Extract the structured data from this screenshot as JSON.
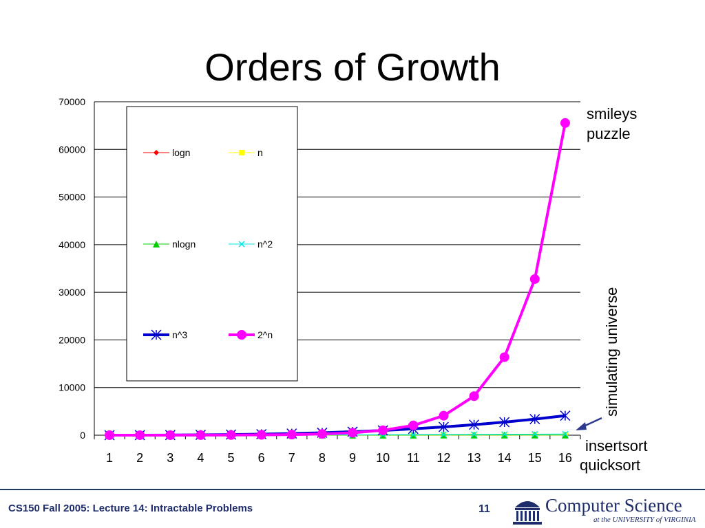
{
  "slide": {
    "title": "Orders of Growth",
    "footer": "CS150 Fall 2005: Lecture 14: Intractable Problems",
    "page_number": "11",
    "logo_text": "Computer Science",
    "logo_subtext": "at the UNIVERSITY of VIRGINIA"
  },
  "annotations": {
    "smileys": "smileys",
    "puzzle": "puzzle",
    "simulating": "simulating universe",
    "insertsort": "insertsort",
    "quicksort": "quicksort"
  },
  "colors": {
    "logn": "#ff0000",
    "n": "#ffff00",
    "nlogn": "#00cc00",
    "n2": "#00e5e5",
    "n3": "#0000cc",
    "two_n": "#ff00ff",
    "arrow": "#2b3a8f",
    "footer": "#1f2d6b"
  },
  "chart_data": {
    "type": "line",
    "x": [
      1,
      2,
      3,
      4,
      5,
      6,
      7,
      8,
      9,
      10,
      11,
      12,
      13,
      14,
      15,
      16
    ],
    "ylim": [
      0,
      70000
    ],
    "yticks": [
      0,
      10000,
      20000,
      30000,
      40000,
      50000,
      60000,
      70000
    ],
    "grid": true,
    "legend_placement": "upper-left inside plot",
    "series": [
      {
        "name": "logn",
        "values": [
          0,
          0.69,
          1.1,
          1.39,
          1.61,
          1.79,
          1.95,
          2.08,
          2.2,
          2.3,
          2.4,
          2.48,
          2.56,
          2.64,
          2.71,
          2.77
        ]
      },
      {
        "name": "n",
        "values": [
          1,
          2,
          3,
          4,
          5,
          6,
          7,
          8,
          9,
          10,
          11,
          12,
          13,
          14,
          15,
          16
        ]
      },
      {
        "name": "nlogn",
        "values": [
          0,
          1.4,
          3.3,
          5.5,
          8,
          10.8,
          13.6,
          16.6,
          19.8,
          23,
          26.4,
          29.8,
          33.3,
          36.9,
          40.6,
          44.4
        ]
      },
      {
        "name": "n^2",
        "values": [
          1,
          4,
          9,
          16,
          25,
          36,
          49,
          64,
          81,
          100,
          121,
          144,
          169,
          196,
          225,
          256
        ]
      },
      {
        "name": "n^3",
        "values": [
          1,
          8,
          27,
          64,
          125,
          216,
          343,
          512,
          729,
          1000,
          1331,
          1728,
          2197,
          2744,
          3375,
          4096
        ]
      },
      {
        "name": "2^n",
        "values": [
          2,
          4,
          8,
          16,
          32,
          64,
          128,
          256,
          512,
          1024,
          2048,
          4096,
          8192,
          16384,
          32768,
          65536
        ]
      }
    ]
  }
}
